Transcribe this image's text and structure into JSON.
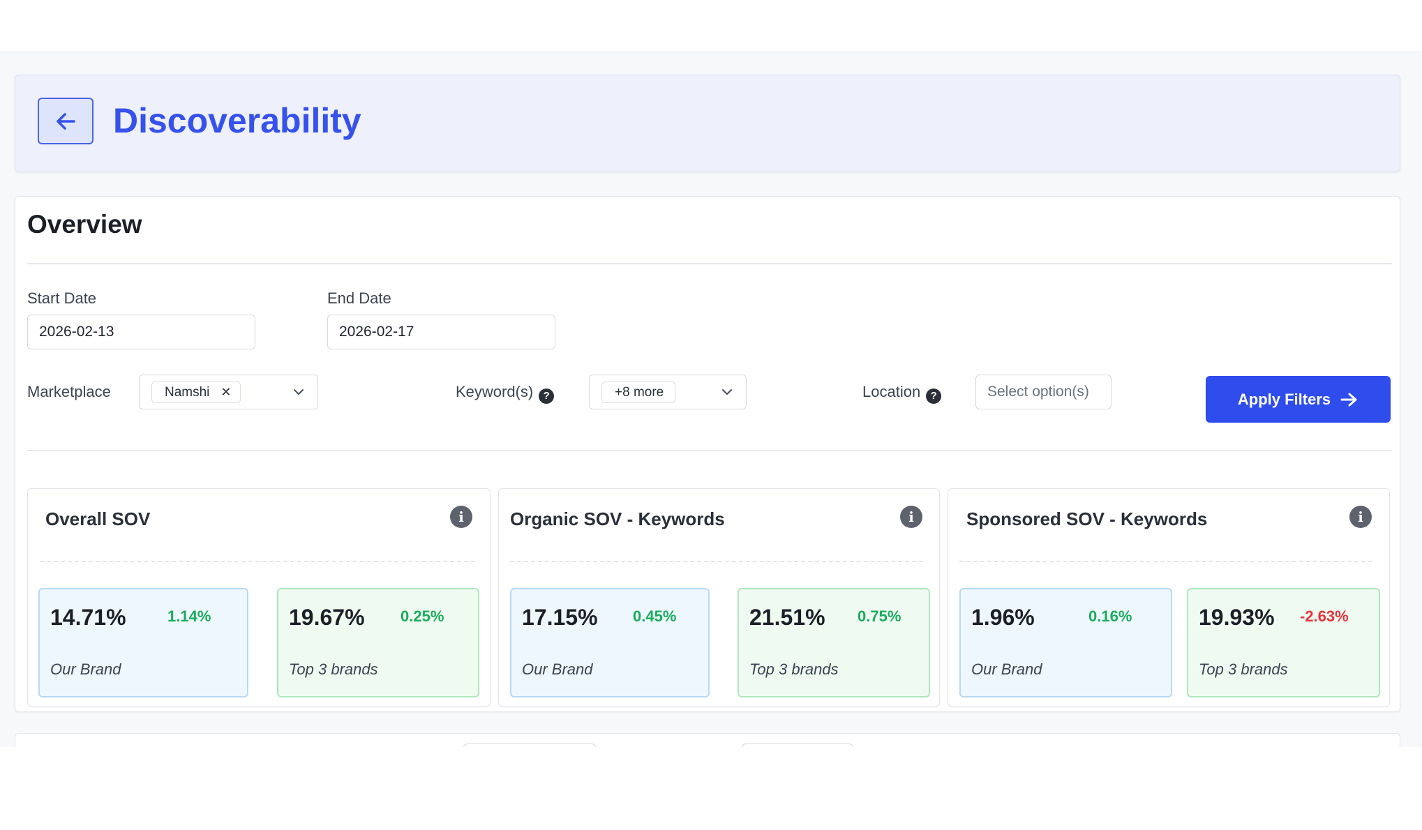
{
  "header": {
    "title": "Discoverability"
  },
  "overview": {
    "title": "Overview",
    "filters": {
      "start_date": {
        "label": "Start Date",
        "value": "2026-02-13"
      },
      "end_date": {
        "label": "End Date",
        "value": "2026-02-17"
      },
      "marketplace": {
        "label": "Marketplace",
        "chip": "Namshi"
      },
      "keywords": {
        "label": "Keyword(s)",
        "chip": "+8 more"
      },
      "location": {
        "label": "Location",
        "placeholder": "Select option(s)"
      },
      "apply_label": "Apply Filters"
    },
    "cards": [
      {
        "title": "Overall SOV",
        "our_brand": {
          "value": "14.71%",
          "change": "1.14%",
          "label": "Our Brand"
        },
        "top3": {
          "value": "19.67%",
          "change": "0.25%",
          "label": "Top 3 brands"
        }
      },
      {
        "title": "Organic SOV - Keywords",
        "our_brand": {
          "value": "17.15%",
          "change": "0.45%",
          "label": "Our Brand"
        },
        "top3": {
          "value": "21.51%",
          "change": "0.75%",
          "label": "Top 3 brands"
        }
      },
      {
        "title": "Sponsored SOV - Keywords",
        "our_brand": {
          "value": "1.96%",
          "change": "0.16%",
          "label": "Our Brand"
        },
        "top3": {
          "value": "19.93%",
          "change": "-2.63%",
          "label": "Top 3 brands"
        }
      }
    ]
  },
  "colors": {
    "accent": "#2f4ced",
    "positive": "#1aab5c",
    "negative": "#e5333d"
  },
  "icons": {
    "back": "arrow-left-icon",
    "help": "question-circle-icon",
    "info": "info-circle-icon",
    "chevron": "chevron-down-icon",
    "apply": "arrow-right-icon"
  }
}
